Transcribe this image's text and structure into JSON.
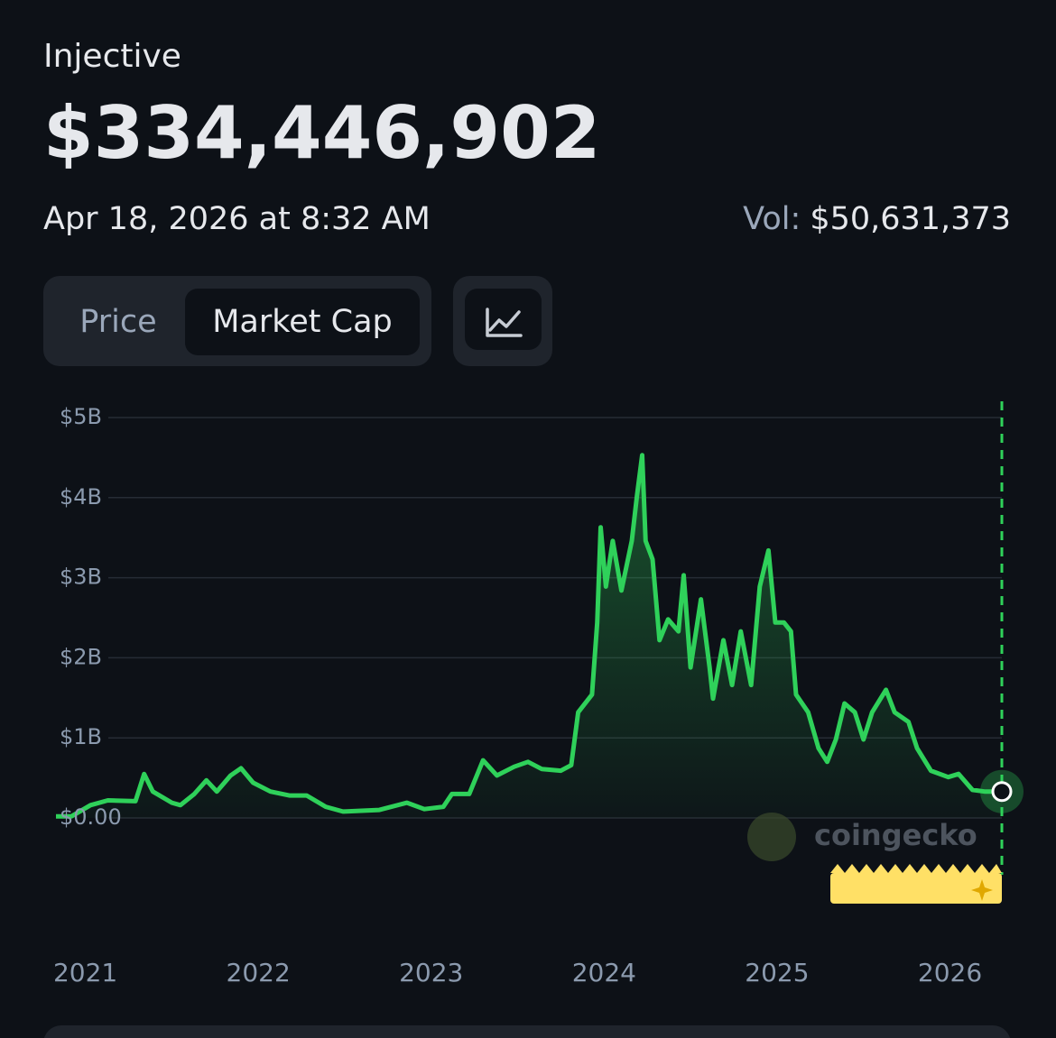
{
  "header": {
    "coin": "Injective",
    "value": "$334,446,902",
    "timestamp": "Apr 18, 2026 at 8:32 AM",
    "volume_label": "Vol:",
    "volume": "$50,631,373"
  },
  "tabs": {
    "price": "Price",
    "market_cap": "Market Cap"
  },
  "watermark": "coingecko",
  "chart_data": {
    "type": "line",
    "x": [
      2020.83,
      2020.92,
      2021.03,
      2021.13,
      2021.29,
      2021.34,
      2021.39,
      2021.5,
      2021.55,
      2021.63,
      2021.7,
      2021.76,
      2021.84,
      2021.9,
      2021.97,
      2022.07,
      2022.18,
      2022.28,
      2022.39,
      2022.49,
      2022.7,
      2022.86,
      2022.96,
      2023.07,
      2023.12,
      2023.22,
      2023.3,
      2023.38,
      2023.48,
      2023.56,
      2023.64,
      2023.75,
      2023.81,
      2023.85,
      2023.93,
      2023.96,
      2023.98,
      2024.01,
      2024.05,
      2024.1,
      2024.16,
      2024.19,
      2024.22,
      2024.24,
      2024.28,
      2024.32,
      2024.37,
      2024.43,
      2024.46,
      2024.5,
      2024.56,
      2024.61,
      2024.63,
      2024.69,
      2024.74,
      2024.79,
      2024.85,
      2024.9,
      2024.95,
      2024.99,
      2025.04,
      2025.08,
      2025.11,
      2025.18,
      2025.24,
      2025.29,
      2025.34,
      2025.39,
      2025.45,
      2025.5,
      2025.55,
      2025.63,
      2025.68,
      2025.76,
      2025.81,
      2025.89,
      2025.99,
      2026.05,
      2026.13,
      2026.2,
      2026.3
    ],
    "series": [
      {
        "color": "#2fd15a",
        "values": [
          0.02,
          0.02,
          0.16,
          0.22,
          0.21,
          0.55,
          0.33,
          0.19,
          0.16,
          0.3,
          0.47,
          0.33,
          0.53,
          0.62,
          0.44,
          0.33,
          0.28,
          0.28,
          0.14,
          0.08,
          0.1,
          0.19,
          0.11,
          0.14,
          0.3,
          0.3,
          0.72,
          0.53,
          0.64,
          0.7,
          0.61,
          0.59,
          0.66,
          1.32,
          1.54,
          2.44,
          3.63,
          2.89,
          3.46,
          2.84,
          3.46,
          4.02,
          4.53,
          3.46,
          3.23,
          2.22,
          2.48,
          2.33,
          3.03,
          1.88,
          2.73,
          1.88,
          1.49,
          2.22,
          1.66,
          2.33,
          1.66,
          2.89,
          3.34,
          2.44,
          2.44,
          2.33,
          1.54,
          1.32,
          0.87,
          0.7,
          0.98,
          1.43,
          1.32,
          0.98,
          1.32,
          1.6,
          1.32,
          1.2,
          0.87,
          0.59,
          0.51,
          0.55,
          0.35,
          0.33,
          0.33
        ]
      }
    ],
    "xlim": [
      2020.83,
      2026.3
    ],
    "xticks": [
      2021,
      2022,
      2023,
      2024,
      2025,
      2026
    ],
    "ylim": [
      0,
      5
    ],
    "yticks": [
      {
        "value": 0,
        "label": "$0.00"
      },
      {
        "value": 1,
        "label": "$1B"
      },
      {
        "value": 2,
        "label": "$2B"
      },
      {
        "value": 3,
        "label": "$3B"
      },
      {
        "value": 4,
        "label": "$4B"
      },
      {
        "value": 5,
        "label": "$5B"
      }
    ],
    "grid": true
  }
}
